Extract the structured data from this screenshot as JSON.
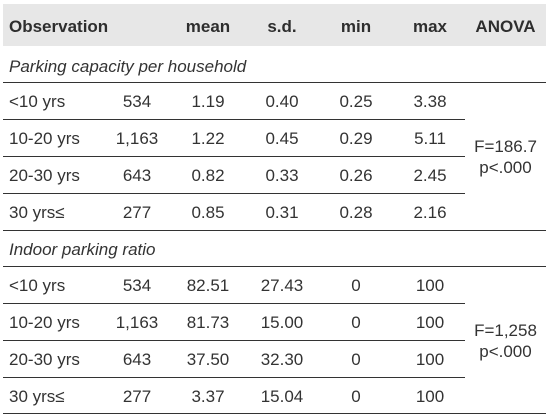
{
  "table": {
    "headers": [
      "Observation",
      "",
      "mean",
      "s.d.",
      "min",
      "max",
      "ANOVA"
    ],
    "sections": [
      {
        "title": "Parking capacity per household",
        "rows": [
          {
            "group": "<10 yrs",
            "n": "534",
            "mean": "1.19",
            "sd": "0.40",
            "min": "0.25",
            "max": "3.38"
          },
          {
            "group": "10-20 yrs",
            "n": "1,163",
            "mean": "1.22",
            "sd": "0.45",
            "min": "0.29",
            "max": "5.11"
          },
          {
            "group": "20-30 yrs",
            "n": "643",
            "mean": "0.82",
            "sd": "0.33",
            "min": "0.26",
            "max": "2.45"
          },
          {
            "group": "30 yrs≤",
            "n": "277",
            "mean": "0.85",
            "sd": "0.31",
            "min": "0.28",
            "max": "2.16"
          }
        ],
        "anova": [
          "F=186.7",
          "p<.000"
        ]
      },
      {
        "title": "Indoor parking ratio",
        "rows": [
          {
            "group": "<10 yrs",
            "n": "534",
            "mean": "82.51",
            "sd": "27.43",
            "min": "0",
            "max": "100"
          },
          {
            "group": "10-20 yrs",
            "n": "1,163",
            "mean": "81.73",
            "sd": "15.00",
            "min": "0",
            "max": "100"
          },
          {
            "group": "20-30 yrs",
            "n": "643",
            "mean": "37.50",
            "sd": "32.30",
            "min": "0",
            "max": "100"
          },
          {
            "group": "30 yrs≤",
            "n": "277",
            "mean": "3.37",
            "sd": "15.04",
            "min": "0",
            "max": "100"
          }
        ],
        "anova": [
          "F=1,258",
          "p<.000"
        ]
      }
    ]
  }
}
